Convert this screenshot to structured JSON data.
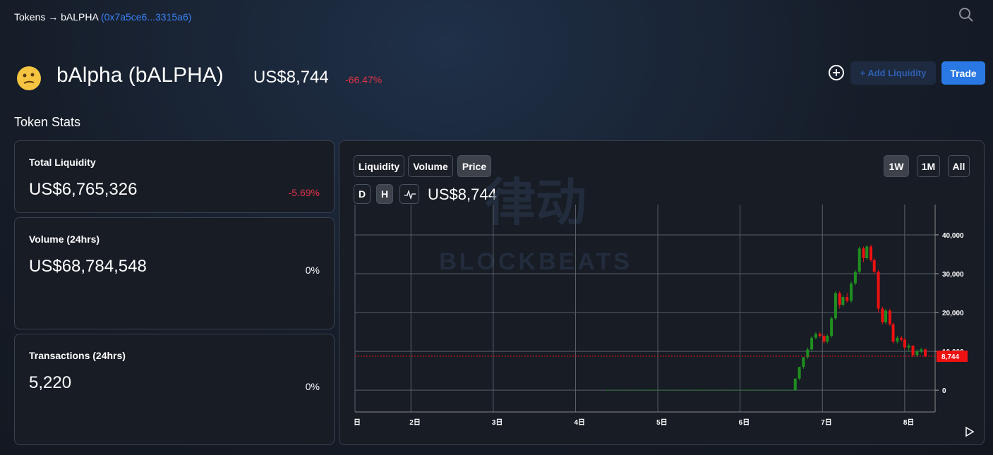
{
  "header": {
    "breadcrumb": {
      "root": "Tokens",
      "arrow": "→",
      "token": "bALPHA",
      "address": "(0x7a5ce6...3315a6)"
    },
    "name": "bAlpha (bALPHA)",
    "price": "US$8,744",
    "change": "-66.47%",
    "add_liquidity": "+ Add Liquidity",
    "trade": "Trade"
  },
  "section_title": "Token Stats",
  "stats": [
    {
      "label": "Total Liquidity",
      "value": "US$6,765,326",
      "change": "-5.69%"
    },
    {
      "label": "Volume (24hrs)",
      "value": "US$68,784,548",
      "change": "0%"
    },
    {
      "label": "Transactions (24hrs)",
      "value": "5,220",
      "change": "0%"
    }
  ],
  "chart_panel": {
    "tabs": [
      "Liquidity",
      "Volume",
      "Price"
    ],
    "ranges": [
      "1W",
      "1M",
      "All"
    ],
    "modes": [
      "D",
      "H"
    ],
    "price": "US$8,744",
    "watermark": {
      "cn": "律动",
      "en": "BLOCKBEATS"
    }
  },
  "chart_data": {
    "type": "candlestick",
    "x": [
      6.67,
      6.72,
      6.77,
      6.82,
      6.87,
      6.92,
      6.97,
      7.02,
      7.06,
      7.11,
      7.16,
      7.21,
      7.25,
      7.3,
      7.35,
      7.4,
      7.45,
      7.5,
      7.54,
      7.59,
      7.63,
      7.68,
      7.73,
      7.77,
      7.82,
      7.86,
      7.91,
      7.96,
      8.0,
      8.05,
      8.1,
      8.15,
      8.2,
      8.25
    ],
    "open": [
      0,
      3000,
      6000,
      8500,
      10500,
      13500,
      14500,
      14000,
      12500,
      14000,
      18500,
      25000,
      22000,
      24000,
      23000,
      27500,
      30500,
      36500,
      34000,
      37000,
      33500,
      30500,
      21000,
      17500,
      20500,
      17000,
      12500,
      13500,
      13000,
      11000,
      11500,
      9000,
      10000,
      10500
    ],
    "high": [
      3000,
      6000,
      8500,
      11000,
      14000,
      15000,
      15000,
      14500,
      14500,
      19000,
      25500,
      25500,
      24500,
      25000,
      28000,
      31000,
      37000,
      37000,
      37500,
      37500,
      34000,
      31000,
      21500,
      21000,
      21000,
      17500,
      14000,
      14000,
      13500,
      12000,
      11500,
      10500,
      11000,
      10800
    ],
    "low": [
      0,
      2500,
      5500,
      8000,
      10000,
      13000,
      13500,
      12000,
      12000,
      13500,
      18000,
      21000,
      21500,
      22500,
      22500,
      27000,
      30000,
      33000,
      33500,
      33000,
      30000,
      20000,
      17000,
      17000,
      16500,
      12000,
      12000,
      12500,
      10500,
      10000,
      8500,
      8500,
      9500,
      8500
    ],
    "close": [
      3000,
      6000,
      8500,
      10500,
      13500,
      14500,
      14000,
      12500,
      14000,
      18500,
      25000,
      22000,
      24000,
      23000,
      27500,
      30500,
      36500,
      34000,
      37000,
      33500,
      30500,
      21000,
      17500,
      20500,
      17000,
      12500,
      13500,
      13000,
      11000,
      11500,
      9000,
      10000,
      10500,
      8744
    ],
    "up_color": "#1f8f1f",
    "down_color": "#ee1111",
    "xlim": [
      1.32,
      8.37
    ],
    "xticks": [
      {
        "value": 1.32,
        "label": "日"
      },
      {
        "value": 2,
        "label": "2日"
      },
      {
        "value": 3,
        "label": "3日"
      },
      {
        "value": 4,
        "label": "4日"
      },
      {
        "value": 5,
        "label": "5日"
      },
      {
        "value": 6,
        "label": "6日"
      },
      {
        "value": 7,
        "label": "7日"
      },
      {
        "value": 8,
        "label": "8日"
      }
    ],
    "ylim": [
      -5600,
      47800
    ],
    "yticks": [
      0,
      {
        "value": 10000,
        "label": "10,000"
      },
      {
        "value": 20000,
        "label": "20,000"
      },
      {
        "value": 30000,
        "label": "30,000"
      },
      {
        "value": 40000,
        "label": "40,000"
      }
    ],
    "grid": true,
    "price_line": {
      "value": 8744,
      "label": "8,744",
      "color": "#ee1111"
    }
  }
}
